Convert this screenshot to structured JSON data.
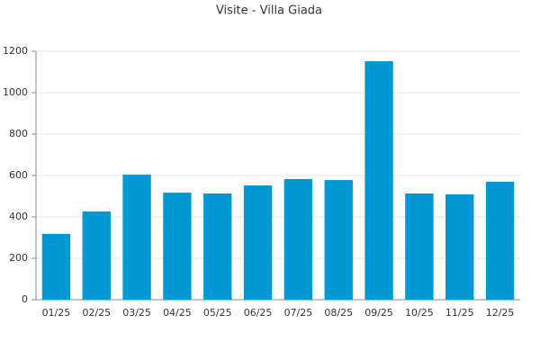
{
  "chart_data": {
    "type": "bar",
    "title": "Visite - Villa Giada",
    "categories": [
      "01/25",
      "02/25",
      "03/25",
      "04/25",
      "05/25",
      "06/25",
      "07/25",
      "08/25",
      "09/25",
      "10/25",
      "11/25",
      "12/25"
    ],
    "values": [
      318,
      426,
      604,
      517,
      513,
      552,
      583,
      578,
      1152,
      513,
      509,
      570
    ],
    "color": "#0099d5",
    "ylim": [
      0,
      1200
    ],
    "yticks": [
      0,
      200,
      400,
      600,
      800,
      1000,
      1200
    ],
    "grid": true
  }
}
